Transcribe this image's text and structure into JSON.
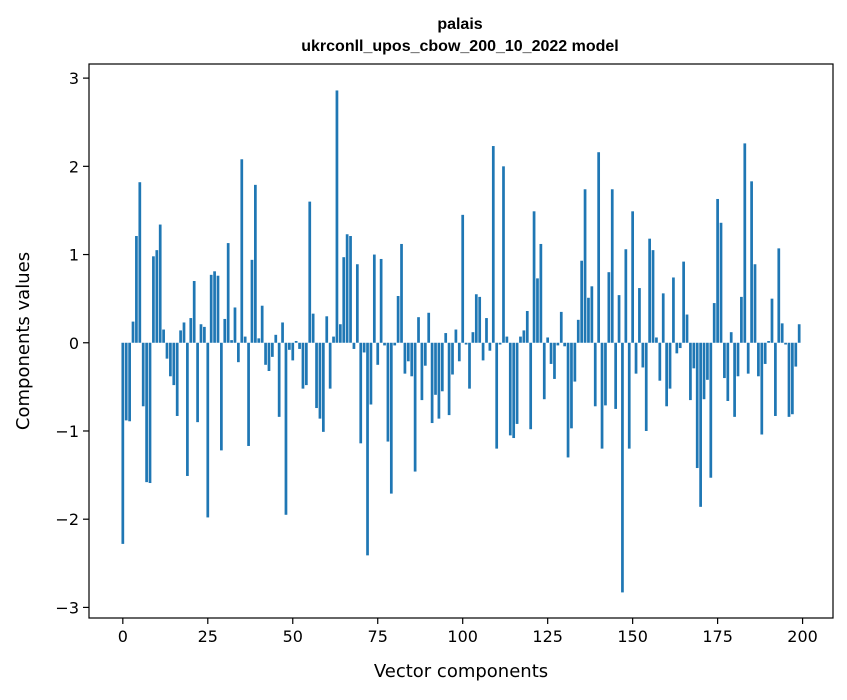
{
  "chart_data": {
    "type": "bar",
    "title": "palais",
    "subtitle": "ukrconll_upos_cbow_200_10_2022 model",
    "xlabel": "Vector components",
    "ylabel": "Components values",
    "xlim": [
      -9.95,
      208.95
    ],
    "ylim": [
      -3.12,
      3.16
    ],
    "x_ticks": [
      0,
      25,
      50,
      75,
      100,
      125,
      150,
      175,
      200
    ],
    "y_ticks": [
      -3,
      -2,
      -1,
      0,
      1,
      2,
      3
    ],
    "x_tick_labels": [
      "0",
      "25",
      "50",
      "75",
      "100",
      "125",
      "150",
      "175",
      "200"
    ],
    "y_tick_labels": [
      "−3",
      "−2",
      "−1",
      "0",
      "1",
      "2",
      "3"
    ],
    "grid": false,
    "legend": "none",
    "bar_color": "#1f77b4",
    "x": [
      0,
      1,
      2,
      3,
      4,
      5,
      6,
      7,
      8,
      9,
      10,
      11,
      12,
      13,
      14,
      15,
      16,
      17,
      18,
      19,
      20,
      21,
      22,
      23,
      24,
      25,
      26,
      27,
      28,
      29,
      30,
      31,
      32,
      33,
      34,
      35,
      36,
      37,
      38,
      39,
      40,
      41,
      42,
      43,
      44,
      45,
      46,
      47,
      48,
      49,
      50,
      51,
      52,
      53,
      54,
      55,
      56,
      57,
      58,
      59,
      60,
      61,
      62,
      63,
      64,
      65,
      66,
      67,
      68,
      69,
      70,
      71,
      72,
      73,
      74,
      75,
      76,
      77,
      78,
      79,
      80,
      81,
      82,
      83,
      84,
      85,
      86,
      87,
      88,
      89,
      90,
      91,
      92,
      93,
      94,
      95,
      96,
      97,
      98,
      99,
      100,
      101,
      102,
      103,
      104,
      105,
      106,
      107,
      108,
      109,
      110,
      111,
      112,
      113,
      114,
      115,
      116,
      117,
      118,
      119,
      120,
      121,
      122,
      123,
      124,
      125,
      126,
      127,
      128,
      129,
      130,
      131,
      132,
      133,
      134,
      135,
      136,
      137,
      138,
      139,
      140,
      141,
      142,
      143,
      144,
      145,
      146,
      147,
      148,
      149,
      150,
      151,
      152,
      153,
      154,
      155,
      156,
      157,
      158,
      159,
      160,
      161,
      162,
      163,
      164,
      165,
      166,
      167,
      168,
      169,
      170,
      171,
      172,
      173,
      174,
      175,
      176,
      177,
      178,
      179,
      180,
      181,
      182,
      183,
      184,
      185,
      186,
      187,
      188,
      189,
      190,
      191,
      192,
      193,
      194,
      195,
      196,
      197,
      198,
      199
    ],
    "values": [
      -2.28,
      -0.88,
      -0.89,
      0.24,
      1.21,
      1.82,
      -0.72,
      -1.58,
      -1.59,
      0.98,
      1.05,
      1.34,
      0.15,
      -0.18,
      -0.38,
      -0.48,
      -0.83,
      0.14,
      0.23,
      -1.51,
      0.28,
      0.7,
      -0.9,
      0.21,
      0.18,
      -1.98,
      0.77,
      0.81,
      0.76,
      -1.22,
      0.27,
      1.13,
      0.03,
      0.4,
      -0.22,
      2.08,
      0.07,
      -1.17,
      0.94,
      1.79,
      0.05,
      0.42,
      -0.25,
      -0.32,
      -0.16,
      0.09,
      -0.84,
      0.23,
      -1.95,
      -0.08,
      -0.2,
      0.02,
      -0.07,
      -0.52,
      -0.48,
      1.6,
      0.33,
      -0.74,
      -0.86,
      -1.01,
      0.3,
      -0.52,
      0.07,
      2.86,
      0.21,
      0.97,
      1.23,
      1.21,
      -0.07,
      0.89,
      -1.14,
      -0.11,
      -2.41,
      -0.7,
      1.0,
      -0.25,
      0.95,
      -0.03,
      -1.12,
      -1.71,
      -0.03,
      0.53,
      1.12,
      -0.35,
      -0.21,
      -0.38,
      -1.46,
      0.29,
      -0.65,
      -0.26,
      0.34,
      -0.91,
      -0.59,
      -0.86,
      -0.55,
      0.11,
      -0.82,
      -0.36,
      0.15,
      -0.21,
      1.45,
      -0.02,
      -0.52,
      0.12,
      0.55,
      0.52,
      -0.2,
      0.28,
      -0.09,
      2.23,
      -1.2,
      -0.02,
      2.0,
      0.07,
      -1.05,
      -1.08,
      -0.92,
      0.07,
      0.14,
      0.36,
      -0.98,
      1.49,
      0.73,
      1.12,
      -0.64,
      0.06,
      -0.24,
      -0.41,
      -0.03,
      0.35,
      -0.04,
      -1.3,
      -0.97,
      -0.44,
      0.26,
      0.93,
      1.74,
      0.51,
      0.64,
      -0.72,
      2.16,
      -1.2,
      -0.71,
      0.8,
      1.74,
      -0.75,
      0.54,
      -2.83,
      1.06,
      -1.2,
      1.49,
      -0.35,
      0.62,
      -0.28,
      -1.0,
      1.18,
      1.05,
      0.06,
      -0.43,
      0.56,
      -0.72,
      -0.52,
      0.74,
      -0.12,
      -0.06,
      0.92,
      0.32,
      -0.65,
      -0.29,
      -1.42,
      -1.86,
      -0.64,
      -0.42,
      -1.53,
      0.45,
      1.63,
      1.36,
      -0.4,
      -0.66,
      0.12,
      -0.84,
      -0.38,
      0.52,
      2.26,
      -0.35,
      1.83,
      0.89,
      -0.38,
      -1.04,
      -0.24,
      0.02,
      0.5,
      -0.83,
      1.07,
      0.22,
      -0.02,
      -0.84,
      -0.81,
      -0.27,
      0.21
    ]
  }
}
